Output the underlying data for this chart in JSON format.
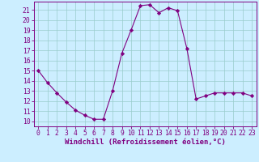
{
  "x": [
    0,
    1,
    2,
    3,
    4,
    5,
    6,
    7,
    8,
    9,
    10,
    11,
    12,
    13,
    14,
    15,
    16,
    17,
    18,
    19,
    20,
    21,
    22,
    23
  ],
  "y": [
    15,
    13.8,
    12.8,
    11.9,
    11.1,
    10.6,
    10.2,
    10.2,
    13.0,
    16.7,
    19.0,
    21.4,
    21.5,
    20.7,
    21.2,
    20.9,
    17.2,
    12.2,
    12.5,
    12.8,
    12.8,
    12.8,
    12.8,
    12.5
  ],
  "line_color": "#800080",
  "marker": "D",
  "marker_size": 2.2,
  "bg_color": "#cceeff",
  "grid_color": "#99cccc",
  "xlabel": "Windchill (Refroidissement éolien,°C)",
  "yticks": [
    10,
    11,
    12,
    13,
    14,
    15,
    16,
    17,
    18,
    19,
    20,
    21
  ],
  "xticks": [
    0,
    1,
    2,
    3,
    4,
    5,
    6,
    7,
    8,
    9,
    10,
    11,
    12,
    13,
    14,
    15,
    16,
    17,
    18,
    19,
    20,
    21,
    22,
    23
  ],
  "tick_color": "#800080",
  "label_color": "#800080",
  "label_fontsize": 6.5,
  "tick_fontsize": 5.8,
  "ylim_min": 9.5,
  "ylim_max": 21.8,
  "xlim_min": -0.5,
  "xlim_max": 23.5
}
